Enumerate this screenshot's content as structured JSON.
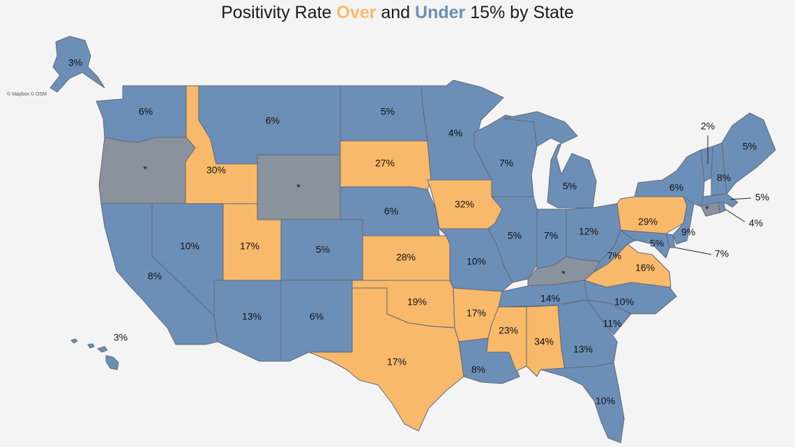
{
  "title": {
    "prefix": "Positivity Rate ",
    "over": "Over",
    "middle": " and ",
    "under": "Under",
    "suffix": " 15% by State"
  },
  "attribution": "© Mapbox © OSM",
  "colors": {
    "over": "#f9b96b",
    "under": "#6c8fb8",
    "no_data": "#8a929e",
    "background": "#f4f4f4"
  },
  "threshold_percent": 15,
  "states": [
    {
      "id": "AK",
      "value": "3%",
      "category": "under"
    },
    {
      "id": "HI",
      "value": "3%",
      "category": "under"
    },
    {
      "id": "WA",
      "value": "6%",
      "category": "under"
    },
    {
      "id": "OR",
      "value": "*",
      "category": "no_data"
    },
    {
      "id": "CA",
      "value": "8%",
      "category": "under"
    },
    {
      "id": "NV",
      "value": "10%",
      "category": "under"
    },
    {
      "id": "ID",
      "value": "30%",
      "category": "over"
    },
    {
      "id": "MT",
      "value": "6%",
      "category": "under"
    },
    {
      "id": "WY",
      "value": "*",
      "category": "no_data"
    },
    {
      "id": "UT",
      "value": "17%",
      "category": "over"
    },
    {
      "id": "AZ",
      "value": "13%",
      "category": "under"
    },
    {
      "id": "CO",
      "value": "5%",
      "category": "under"
    },
    {
      "id": "NM",
      "value": "6%",
      "category": "under"
    },
    {
      "id": "ND",
      "value": "5%",
      "category": "under"
    },
    {
      "id": "SD",
      "value": "27%",
      "category": "over"
    },
    {
      "id": "NE",
      "value": "6%",
      "category": "under"
    },
    {
      "id": "KS",
      "value": "28%",
      "category": "over"
    },
    {
      "id": "OK",
      "value": "19%",
      "category": "over"
    },
    {
      "id": "TX",
      "value": "17%",
      "category": "over"
    },
    {
      "id": "MN",
      "value": "4%",
      "category": "under"
    },
    {
      "id": "IA",
      "value": "32%",
      "category": "over"
    },
    {
      "id": "MO",
      "value": "10%",
      "category": "under"
    },
    {
      "id": "AR",
      "value": "17%",
      "category": "over"
    },
    {
      "id": "LA",
      "value": "8%",
      "category": "under"
    },
    {
      "id": "WI",
      "value": "7%",
      "category": "under"
    },
    {
      "id": "IL",
      "value": "5%",
      "category": "under"
    },
    {
      "id": "MI",
      "value": "5%",
      "category": "under"
    },
    {
      "id": "IN",
      "value": "7%",
      "category": "under"
    },
    {
      "id": "OH",
      "value": "12%",
      "category": "under"
    },
    {
      "id": "KY",
      "value": "*",
      "category": "no_data"
    },
    {
      "id": "TN",
      "value": "14%",
      "category": "under"
    },
    {
      "id": "MS",
      "value": "23%",
      "category": "over"
    },
    {
      "id": "AL",
      "value": "34%",
      "category": "over"
    },
    {
      "id": "GA",
      "value": "13%",
      "category": "under"
    },
    {
      "id": "FL",
      "value": "10%",
      "category": "under"
    },
    {
      "id": "SC",
      "value": "11%",
      "category": "under"
    },
    {
      "id": "NC",
      "value": "10%",
      "category": "under"
    },
    {
      "id": "VA",
      "value": "16%",
      "category": "over"
    },
    {
      "id": "WV",
      "value": "7%",
      "category": "under"
    },
    {
      "id": "MD",
      "value": "5%",
      "category": "under"
    },
    {
      "id": "DE",
      "value": "7%",
      "category": "under"
    },
    {
      "id": "PA",
      "value": "29%",
      "category": "over"
    },
    {
      "id": "NJ",
      "value": "9%",
      "category": "under"
    },
    {
      "id": "NY",
      "value": "6%",
      "category": "under"
    },
    {
      "id": "CT",
      "value": "*",
      "category": "no_data"
    },
    {
      "id": "RI",
      "value": "4%",
      "category": "under"
    },
    {
      "id": "MA",
      "value": "5%",
      "category": "under"
    },
    {
      "id": "VT",
      "value": "2%",
      "category": "under"
    },
    {
      "id": "NH",
      "value": "8%",
      "category": "under"
    },
    {
      "id": "ME",
      "value": "5%",
      "category": "under"
    }
  ]
}
